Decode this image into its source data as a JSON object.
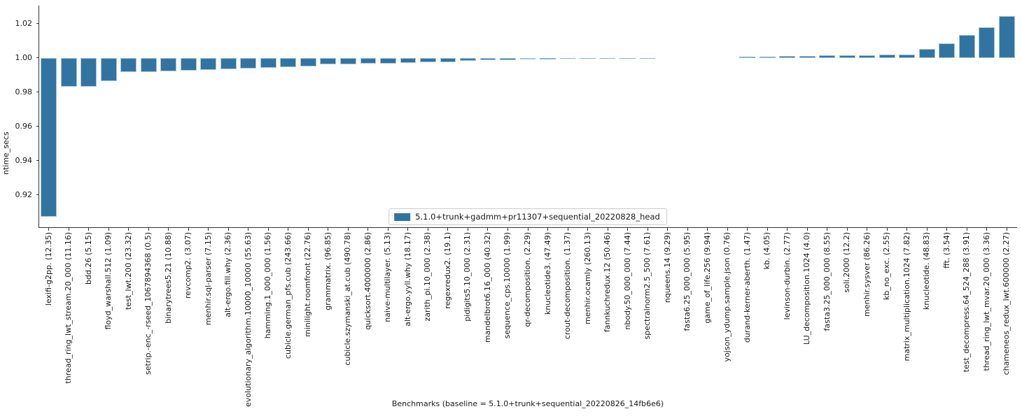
{
  "figure": {
    "background": "#ffffff",
    "bar_color": "#3274a1",
    "bar_edge_color": "#a6c5dc",
    "axis_color": "#333333",
    "text_color": "#1a1a1a",
    "legend_label": "5.1.0+trunk+gadmm+pr11307+sequential_20220828_head"
  },
  "chart_data": {
    "type": "bar",
    "title": "",
    "xlabel": "Benchmarks (baseline = 5.1.0+trunk+sequential_20220826_14fb6e6)",
    "ylabel": "ntime_secs",
    "ylim": [
      0.901,
      1.0305
    ],
    "yticks": [
      0.92,
      0.94,
      0.96,
      0.98,
      1.0,
      1.02
    ],
    "baseline": 1.0,
    "grid": false,
    "legend_position": "lower center",
    "legend": [
      "5.1.0+trunk+gadmm+pr11307+sequential_20220828_head"
    ],
    "categories": [
      "lexifi-g2pp. (12.35)",
      "thread_ring_lwt_stream.20_000 (11.16)",
      "bdd.26 (5.15)",
      "floyd_warshall.512 (1.09)",
      "test_lwt.200 (23.32)",
      "setrip.-enc_-rseed_1067894368 (0.5)",
      "binarytrees5.21 (10.88)",
      "revcomp2. (3.07)",
      "menhir.sql-parser (7.15)",
      "alt-ergo.fill.why (2.36)",
      "evolutionary_algorithm.10000_10000 (55.63)",
      "hamming.1_000_000 (1.56)",
      "cubicle.german_pfs.cub (243.66)",
      "minilight.roomfront (22.76)",
      "grammatrix. (96.85)",
      "cubicle.szymanski_at.cub (490.78)",
      "quicksort.4000000 (2.86)",
      "naive-multilayer. (5.13)",
      "alt-ergo.yyll.why (18.17)",
      "zarith_pi.10_000 (2.38)",
      "regexredux2. (19.1)",
      "pidigits5.10_000 (2.31)",
      "mandelbrot6.16_000 (40.32)",
      "sequence_cps.10000 (1.99)",
      "qr-decomposition. (2.29)",
      "knucleotide3. (47.49)",
      "crout-decomposition. (1.37)",
      "menhir.ocamly (260.13)",
      "fannkuchredux.12 (50.46)",
      "nbody.50_000_000 (7.44)",
      "spectralnorm2.5_500 (7.61)",
      "nqueens.14 (9.29)",
      "fasta6.25_000_000 (5.95)",
      "game_of_life.256 (9.94)",
      "yojson_ydump.sample.json (0.76)",
      "durand-kerner-aberth. (1.47)",
      "kb. (4.05)",
      "levinson-durbin. (2.77)",
      "LU_decomposition.1024 (4.0)",
      "fasta3.25_000_000 (8.55)",
      "soli.2000 (12.2)",
      "menhir.sysver (86.26)",
      "kb_no_exc. (2.55)",
      "matrix_multiplication.1024 (7.82)",
      "knucleotide. (48.83)",
      "fft. (3.54)",
      "test_decompress.64_524_288 (3.91)",
      "thread_ring_lwt_mvar.20_000 (3.36)",
      "chameneos_redux_lwt.600000 (2.27)"
    ],
    "values": [
      0.907,
      0.983,
      0.983,
      0.9865,
      0.9915,
      0.9918,
      0.992,
      0.9925,
      0.993,
      0.9933,
      0.9937,
      0.9942,
      0.9947,
      0.995,
      0.996,
      0.9963,
      0.9965,
      0.9964,
      0.997,
      0.9973,
      0.9976,
      0.9983,
      0.9987,
      0.9988,
      0.9991,
      0.9992,
      0.9994,
      0.9995,
      0.9996,
      0.9997,
      0.9997,
      0.9999,
      1.0,
      1.0,
      1.0,
      1.0005,
      1.0007,
      1.0009,
      1.001,
      1.0013,
      1.0015,
      1.0016,
      1.0017,
      1.0019,
      1.005,
      1.0085,
      1.0135,
      1.018,
      1.0245
    ]
  }
}
